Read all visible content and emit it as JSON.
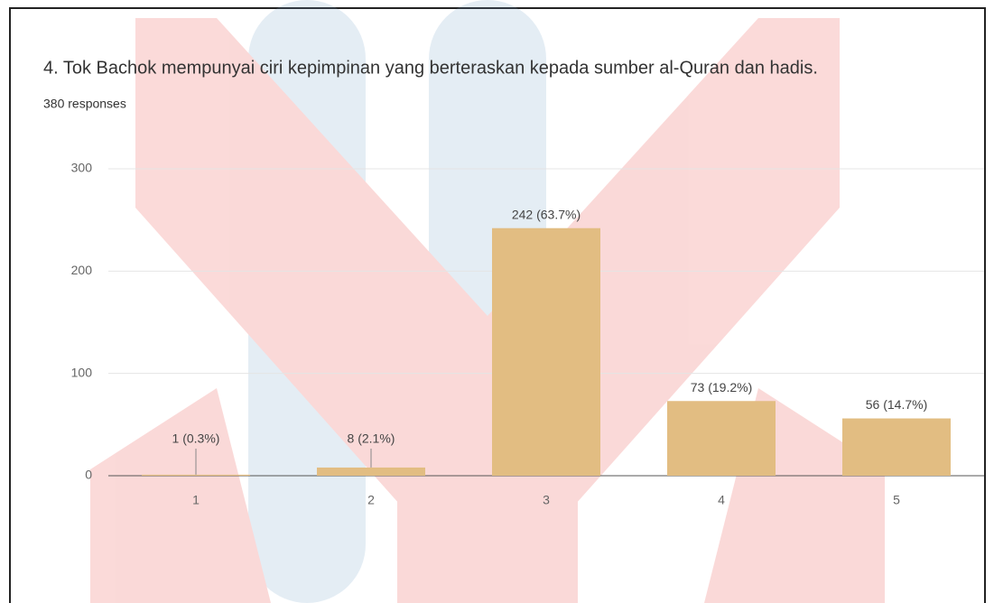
{
  "chart_data": {
    "type": "bar",
    "title": "4.   Tok Bachok mempunyai ciri kepimpinan yang berteraskan kepada sumber al-Quran dan hadis.",
    "subtitle": "380 responses",
    "categories": [
      "1",
      "2",
      "3",
      "4",
      "5"
    ],
    "values": [
      1,
      8,
      242,
      73,
      56
    ],
    "value_labels": [
      "1 (0.3%)",
      "8 (2.1%)",
      "242 (63.7%)",
      "73 (19.2%)",
      "56 (14.7%)"
    ],
    "color": "#e2bd82",
    "ylim": [
      0,
      300
    ],
    "yticks": [
      0,
      100,
      200,
      300
    ],
    "grid": true
  }
}
